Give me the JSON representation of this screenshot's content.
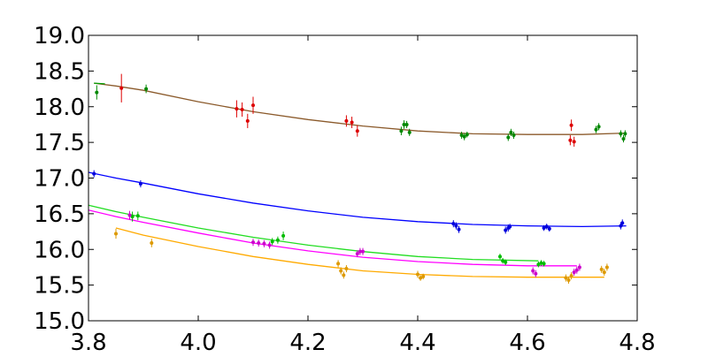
{
  "chart_data": {
    "type": "scatter",
    "title": "",
    "xlabel": "",
    "ylabel": "",
    "xlim": [
      3.8,
      4.8
    ],
    "ylim": [
      15.0,
      19.0
    ],
    "x_ticks": [
      3.8,
      4.0,
      4.2,
      4.4,
      4.6,
      4.8
    ],
    "y_ticks": [
      15.0,
      15.5,
      16.0,
      16.5,
      17.0,
      17.5,
      18.0,
      18.5,
      19.0
    ],
    "x_tick_labels": [
      "3.8",
      "4.0",
      "4.2",
      "4.4",
      "4.6",
      "4.8"
    ],
    "y_tick_labels": [
      "15.0",
      "15.5",
      "16.0",
      "16.5",
      "17.0",
      "17.5",
      "18.0",
      "18.5",
      "19.0"
    ],
    "grid": false,
    "curves": [
      {
        "color": "#8B5A2B",
        "x": [
          3.81,
          3.85,
          3.9,
          4.0,
          4.1,
          4.2,
          4.3,
          4.4,
          4.5,
          4.6,
          4.7,
          4.78
        ],
        "y": [
          18.33,
          18.29,
          18.23,
          18.07,
          17.93,
          17.82,
          17.73,
          17.66,
          17.62,
          17.61,
          17.61,
          17.63
        ]
      },
      {
        "color": "#00A000",
        "x": [
          3.81,
          3.83
        ],
        "y": [
          18.33,
          18.32
        ]
      },
      {
        "color": "#0000FF",
        "x": [
          3.8,
          3.85,
          3.9,
          4.0,
          4.1,
          4.2,
          4.3,
          4.4,
          4.5,
          4.6,
          4.7,
          4.78
        ],
        "y": [
          17.08,
          17.0,
          16.93,
          16.78,
          16.65,
          16.54,
          16.45,
          16.39,
          16.35,
          16.33,
          16.32,
          16.33
        ]
      },
      {
        "color": "#22DD22",
        "x": [
          3.8,
          3.85,
          3.9,
          4.0,
          4.1,
          4.2,
          4.3,
          4.4,
          4.5,
          4.62
        ],
        "y": [
          16.62,
          16.53,
          16.45,
          16.3,
          16.17,
          16.06,
          15.97,
          15.9,
          15.86,
          15.84
        ]
      },
      {
        "color": "#FF00FF",
        "x": [
          3.8,
          3.85,
          3.9,
          4.0,
          4.1,
          4.2,
          4.3,
          4.4,
          4.5,
          4.6,
          4.69
        ],
        "y": [
          16.55,
          16.46,
          16.38,
          16.23,
          16.09,
          15.98,
          15.89,
          15.83,
          15.79,
          15.77,
          15.77
        ]
      },
      {
        "color": "#FFAA00",
        "x": [
          3.85,
          3.9,
          4.0,
          4.1,
          4.2,
          4.3,
          4.4,
          4.5,
          4.6,
          4.74
        ],
        "y": [
          16.3,
          16.2,
          16.04,
          15.9,
          15.79,
          15.7,
          15.65,
          15.62,
          15.61,
          15.61
        ]
      }
    ],
    "series": [
      {
        "color": "#008800",
        "points": [
          {
            "x": 3.815,
            "y": 18.2,
            "err": 0.1
          },
          {
            "x": 3.905,
            "y": 18.25,
            "err": 0.06
          },
          {
            "x": 4.37,
            "y": 17.66,
            "err": 0.06
          },
          {
            "x": 4.375,
            "y": 17.75,
            "err": 0.06
          },
          {
            "x": 4.38,
            "y": 17.75,
            "err": 0.05
          },
          {
            "x": 4.385,
            "y": 17.64,
            "err": 0.05
          },
          {
            "x": 4.48,
            "y": 17.6,
            "err": 0.05
          },
          {
            "x": 4.485,
            "y": 17.58,
            "err": 0.05
          },
          {
            "x": 4.49,
            "y": 17.61,
            "err": 0.04
          },
          {
            "x": 4.565,
            "y": 17.57,
            "err": 0.05
          },
          {
            "x": 4.57,
            "y": 17.64,
            "err": 0.05
          },
          {
            "x": 4.575,
            "y": 17.6,
            "err": 0.05
          },
          {
            "x": 4.725,
            "y": 17.68,
            "err": 0.05
          },
          {
            "x": 4.73,
            "y": 17.72,
            "err": 0.05
          },
          {
            "x": 4.77,
            "y": 17.62,
            "err": 0.05
          },
          {
            "x": 4.775,
            "y": 17.55,
            "err": 0.05
          },
          {
            "x": 4.778,
            "y": 17.62,
            "err": 0.05
          }
        ]
      },
      {
        "color": "#DD0000",
        "points": [
          {
            "x": 3.86,
            "y": 18.26,
            "err": 0.2
          },
          {
            "x": 4.07,
            "y": 17.97,
            "err": 0.12
          },
          {
            "x": 4.08,
            "y": 17.96,
            "err": 0.1
          },
          {
            "x": 4.09,
            "y": 17.8,
            "err": 0.1
          },
          {
            "x": 4.1,
            "y": 18.02,
            "err": 0.12
          },
          {
            "x": 4.27,
            "y": 17.8,
            "err": 0.08
          },
          {
            "x": 4.28,
            "y": 17.78,
            "err": 0.08
          },
          {
            "x": 4.29,
            "y": 17.66,
            "err": 0.08
          },
          {
            "x": 4.678,
            "y": 17.53,
            "err": 0.07
          },
          {
            "x": 4.68,
            "y": 17.74,
            "err": 0.08
          },
          {
            "x": 4.685,
            "y": 17.51,
            "err": 0.07
          }
        ]
      },
      {
        "color": "#0000DD",
        "points": [
          {
            "x": 3.81,
            "y": 17.06,
            "err": 0.05
          },
          {
            "x": 3.895,
            "y": 16.92,
            "err": 0.05
          },
          {
            "x": 4.465,
            "y": 16.36,
            "err": 0.05
          },
          {
            "x": 4.47,
            "y": 16.33,
            "err": 0.05
          },
          {
            "x": 4.475,
            "y": 16.28,
            "err": 0.05
          },
          {
            "x": 4.56,
            "y": 16.27,
            "err": 0.05
          },
          {
            "x": 4.565,
            "y": 16.3,
            "err": 0.05
          },
          {
            "x": 4.568,
            "y": 16.32,
            "err": 0.04
          },
          {
            "x": 4.63,
            "y": 16.3,
            "err": 0.04
          },
          {
            "x": 4.635,
            "y": 16.32,
            "err": 0.04
          },
          {
            "x": 4.64,
            "y": 16.29,
            "err": 0.04
          },
          {
            "x": 4.77,
            "y": 16.33,
            "err": 0.05
          },
          {
            "x": 4.773,
            "y": 16.37,
            "err": 0.05
          }
        ]
      },
      {
        "color": "#00BB00",
        "points": [
          {
            "x": 3.88,
            "y": 16.46,
            "err": 0.07
          },
          {
            "x": 3.89,
            "y": 16.47,
            "err": 0.06
          },
          {
            "x": 4.135,
            "y": 16.11,
            "err": 0.05
          },
          {
            "x": 4.145,
            "y": 16.13,
            "err": 0.05
          },
          {
            "x": 4.155,
            "y": 16.19,
            "err": 0.06
          },
          {
            "x": 4.55,
            "y": 15.9,
            "err": 0.04
          },
          {
            "x": 4.555,
            "y": 15.84,
            "err": 0.04
          },
          {
            "x": 4.56,
            "y": 15.82,
            "err": 0.04
          },
          {
            "x": 4.62,
            "y": 15.79,
            "err": 0.04
          },
          {
            "x": 4.625,
            "y": 15.81,
            "err": 0.04
          },
          {
            "x": 4.63,
            "y": 15.8,
            "err": 0.04
          }
        ]
      },
      {
        "color": "#CC00CC",
        "points": [
          {
            "x": 3.875,
            "y": 16.48,
            "err": 0.06
          },
          {
            "x": 4.1,
            "y": 16.1,
            "err": 0.05
          },
          {
            "x": 4.11,
            "y": 16.09,
            "err": 0.05
          },
          {
            "x": 4.12,
            "y": 16.08,
            "err": 0.05
          },
          {
            "x": 4.13,
            "y": 16.06,
            "err": 0.05
          },
          {
            "x": 4.29,
            "y": 15.94,
            "err": 0.05
          },
          {
            "x": 4.295,
            "y": 15.97,
            "err": 0.05
          },
          {
            "x": 4.3,
            "y": 15.97,
            "err": 0.05
          },
          {
            "x": 4.61,
            "y": 15.7,
            "err": 0.05
          },
          {
            "x": 4.615,
            "y": 15.66,
            "err": 0.05
          },
          {
            "x": 4.685,
            "y": 15.68,
            "err": 0.05
          },
          {
            "x": 4.69,
            "y": 15.71,
            "err": 0.05
          },
          {
            "x": 4.695,
            "y": 15.75,
            "err": 0.05
          }
        ]
      },
      {
        "color": "#DD9900",
        "points": [
          {
            "x": 3.85,
            "y": 16.22,
            "err": 0.07
          },
          {
            "x": 3.915,
            "y": 16.09,
            "err": 0.06
          },
          {
            "x": 4.255,
            "y": 15.8,
            "err": 0.05
          },
          {
            "x": 4.26,
            "y": 15.7,
            "err": 0.05
          },
          {
            "x": 4.265,
            "y": 15.64,
            "err": 0.05
          },
          {
            "x": 4.27,
            "y": 15.73,
            "err": 0.05
          },
          {
            "x": 4.4,
            "y": 15.65,
            "err": 0.05
          },
          {
            "x": 4.405,
            "y": 15.6,
            "err": 0.04
          },
          {
            "x": 4.41,
            "y": 15.62,
            "err": 0.04
          },
          {
            "x": 4.67,
            "y": 15.6,
            "err": 0.05
          },
          {
            "x": 4.675,
            "y": 15.57,
            "err": 0.05
          },
          {
            "x": 4.68,
            "y": 15.63,
            "err": 0.05
          },
          {
            "x": 4.735,
            "y": 15.72,
            "err": 0.05
          },
          {
            "x": 4.74,
            "y": 15.68,
            "err": 0.05
          },
          {
            "x": 4.745,
            "y": 15.75,
            "err": 0.05
          }
        ]
      }
    ]
  }
}
